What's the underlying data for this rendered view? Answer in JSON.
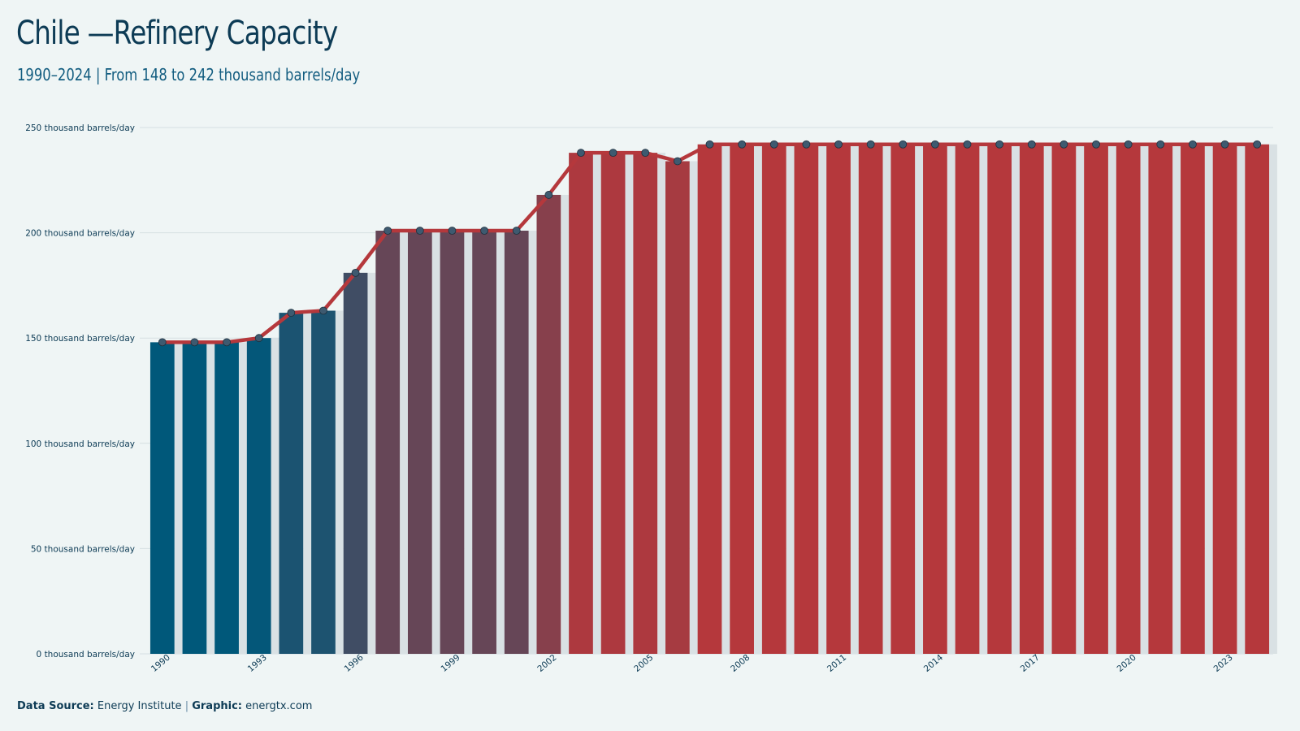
{
  "title": "Chile —Refinery Capacity",
  "subtitle": "1990–2024 | From 148 to 242 thousand barrels/day",
  "caption": {
    "source_label": "Data Source:",
    "source": "Energy Institute",
    "separator": "|",
    "graphic_label": "Graphic:",
    "graphic": "energtx.com"
  },
  "colors": {
    "start": "#00587a",
    "end": "#b5383c",
    "line": "#b5383c",
    "marker": "#3e5a70",
    "background": "#eff5f5",
    "gap": "#d9e1e4"
  },
  "chart_data": {
    "type": "bar",
    "title": "Chile —Refinery Capacity",
    "subtitle": "1990–2024 | From 148 to 242 thousand barrels/day",
    "xlabel": "",
    "ylabel": "",
    "unit": "thousand barrels/day",
    "ylim": [
      0,
      250
    ],
    "yticks": [
      0,
      50,
      100,
      150,
      200,
      250
    ],
    "ytick_labels": [
      "0 thousand barrels/day",
      "50 thousand barrels/day",
      "100 thousand barrels/day",
      "150 thousand barrels/day",
      "200 thousand barrels/day",
      "250 thousand barrels/day"
    ],
    "xtick_labels": [
      "1990",
      "1993",
      "1996",
      "1999",
      "2002",
      "2005",
      "2008",
      "2011",
      "2014",
      "2017",
      "2020",
      "2023"
    ],
    "grid": true,
    "overlay": "line-with-markers",
    "categories": [
      1990,
      1991,
      1992,
      1993,
      1994,
      1995,
      1996,
      1997,
      1998,
      1999,
      2000,
      2001,
      2002,
      2003,
      2004,
      2005,
      2006,
      2007,
      2008,
      2009,
      2010,
      2011,
      2012,
      2013,
      2014,
      2015,
      2016,
      2017,
      2018,
      2019,
      2020,
      2021,
      2022,
      2023,
      2024
    ],
    "values": [
      148,
      148,
      148,
      150,
      162,
      163,
      181,
      201,
      201,
      201,
      201,
      201,
      218,
      238,
      238,
      238,
      234,
      242,
      242,
      242,
      242,
      242,
      242,
      242,
      242,
      242,
      242,
      242,
      242,
      242,
      242,
      242,
      242,
      242,
      242
    ]
  }
}
